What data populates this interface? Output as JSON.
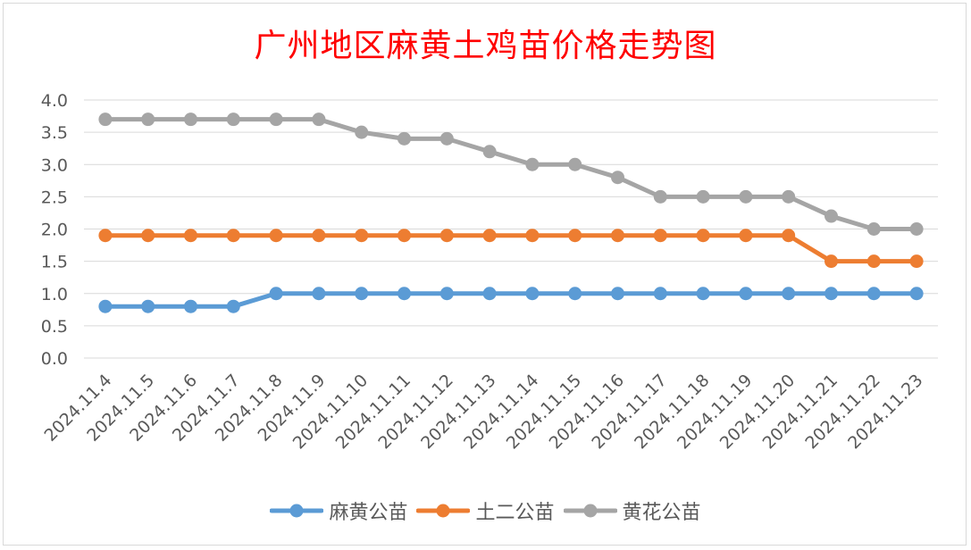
{
  "chart_data": {
    "type": "line",
    "title": "广州地区麻黄土鸡苗价格走势图",
    "title_color": "#ff0000",
    "categories": [
      "2024.11.4",
      "2024.11.5",
      "2024.11.6",
      "2024.11.7",
      "2024.11.8",
      "2024.11.9",
      "2024.11.10",
      "2024.11.11",
      "2024.11.12",
      "2024.11.13",
      "2024.11.14",
      "2024.11.15",
      "2024.11.16",
      "2024.11.17",
      "2024.11.18",
      "2024.11.19",
      "2024.11.20",
      "2024.11.21",
      "2024.11.22",
      "2024.11.23"
    ],
    "ylim": [
      0,
      4.0
    ],
    "yticks": [
      "0.0",
      "0.5",
      "1.0",
      "1.5",
      "2.0",
      "2.5",
      "3.0",
      "3.5",
      "4.0"
    ],
    "grid": true,
    "legend_position": "bottom",
    "series": [
      {
        "name": "麻黄公苗",
        "color": "#5b9bd5",
        "values": [
          0.8,
          0.8,
          0.8,
          0.8,
          1.0,
          1.0,
          1.0,
          1.0,
          1.0,
          1.0,
          1.0,
          1.0,
          1.0,
          1.0,
          1.0,
          1.0,
          1.0,
          1.0,
          1.0,
          1.0
        ]
      },
      {
        "name": "土二公苗",
        "color": "#ed7d31",
        "values": [
          1.9,
          1.9,
          1.9,
          1.9,
          1.9,
          1.9,
          1.9,
          1.9,
          1.9,
          1.9,
          1.9,
          1.9,
          1.9,
          1.9,
          1.9,
          1.9,
          1.9,
          1.5,
          1.5,
          1.5
        ]
      },
      {
        "name": "黄花公苗",
        "color": "#a5a5a5",
        "values": [
          3.7,
          3.7,
          3.7,
          3.7,
          3.7,
          3.7,
          3.5,
          3.4,
          3.4,
          3.2,
          3.0,
          3.0,
          2.8,
          2.5,
          2.5,
          2.5,
          2.5,
          2.2,
          2.0,
          2.0
        ]
      }
    ]
  }
}
